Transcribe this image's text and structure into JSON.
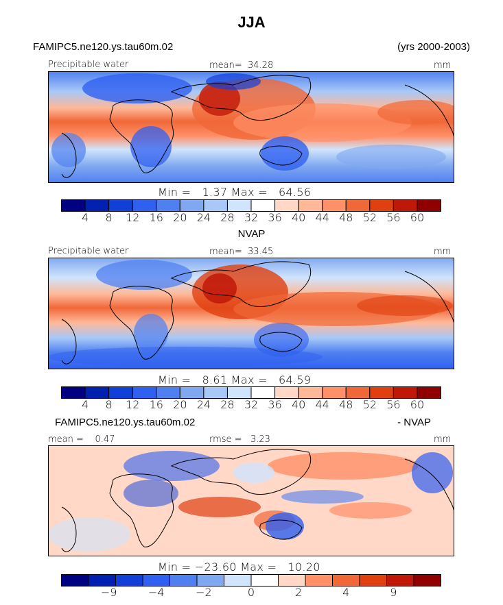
{
  "title": "JJA",
  "panels": [
    {
      "id": "model",
      "header_left": "FAMIPC5.ne120.ys.tau60m.02",
      "header_right": "(yrs 2000-2003)",
      "variable": "Precipitable water",
      "mean_label": "mean=",
      "mean_value": "34.28",
      "units": "mm",
      "min_label": "Min =",
      "min_value": "1.37",
      "max_label": "Max =",
      "max_value": "64.56",
      "colorbar": {
        "colors": [
          "#000080",
          "#0020b0",
          "#1040d8",
          "#3060f0",
          "#5080f0",
          "#80a8f0",
          "#a8c8f8",
          "#d0e4fc",
          "#ffffff",
          "#ffd8c8",
          "#ffb898",
          "#ff9068",
          "#f06838",
          "#e04010",
          "#c01808",
          "#900000"
        ],
        "ticks": [
          "4",
          "8",
          "12",
          "16",
          "20",
          "24",
          "28",
          "32",
          "36",
          "40",
          "44",
          "48",
          "52",
          "56",
          "60"
        ]
      }
    },
    {
      "id": "obs",
      "header_center": "NVAP",
      "variable": "Precipitable water",
      "mean_label": "mean=",
      "mean_value": "33.45",
      "units": "mm",
      "min_label": "Min =",
      "min_value": "8.61",
      "max_label": "Max =",
      "max_value": "64.59",
      "colorbar": {
        "colors": [
          "#000080",
          "#0020b0",
          "#1040d8",
          "#3060f0",
          "#5080f0",
          "#80a8f0",
          "#a8c8f8",
          "#d0e4fc",
          "#ffffff",
          "#ffd8c8",
          "#ffb898",
          "#ff9068",
          "#f06838",
          "#e04010",
          "#c01808",
          "#900000"
        ],
        "ticks": [
          "4",
          "8",
          "12",
          "16",
          "20",
          "24",
          "28",
          "32",
          "36",
          "40",
          "44",
          "48",
          "52",
          "56",
          "60"
        ]
      }
    },
    {
      "id": "diff",
      "header_left": "FAMIPC5.ne120.ys.tau60m.02",
      "header_right": "- NVAP",
      "mean_label": "mean =",
      "mean_value": "0.47",
      "rmse_label": "rmse =",
      "rmse_value": "3.23",
      "units": "mm",
      "min_label": "Min =",
      "min_value": "−23.60",
      "max_label": "Max =",
      "max_value": "10.20",
      "colorbar": {
        "colors": [
          "#000080",
          "#0020b0",
          "#1040d8",
          "#3060f0",
          "#5080f0",
          "#80a8f0",
          "#d0e4fc",
          "#ffffff",
          "#ffd8c8",
          "#ff9068",
          "#f06838",
          "#e04010",
          "#c01808",
          "#900000"
        ],
        "ticks": [
          "−9",
          "−4",
          "−2",
          "0",
          "2",
          "4",
          "9"
        ]
      }
    }
  ],
  "chart_data": [
    {
      "type": "heatmap",
      "title": "Precipitable water",
      "subtitle": "FAMIPC5.ne120.ys.tau60m.02 (yrs 2000-2003)",
      "units": "mm",
      "mean": 34.28,
      "min": 1.37,
      "max": 64.56,
      "levels": [
        4,
        8,
        12,
        16,
        20,
        24,
        28,
        32,
        36,
        40,
        44,
        48,
        52,
        56,
        60
      ]
    },
    {
      "type": "heatmap",
      "title": "Precipitable water",
      "subtitle": "NVAP",
      "units": "mm",
      "mean": 33.45,
      "min": 8.61,
      "max": 64.59,
      "levels": [
        4,
        8,
        12,
        16,
        20,
        24,
        28,
        32,
        36,
        40,
        44,
        48,
        52,
        56,
        60
      ]
    },
    {
      "type": "heatmap",
      "subtitle": "FAMIPC5.ne120.ys.tau60m.02 - NVAP",
      "units": "mm",
      "mean": 0.47,
      "rmse": 3.23,
      "min": -23.6,
      "max": 10.2,
      "levels": [
        -9,
        -4,
        -2,
        0,
        2,
        4,
        9
      ]
    }
  ]
}
